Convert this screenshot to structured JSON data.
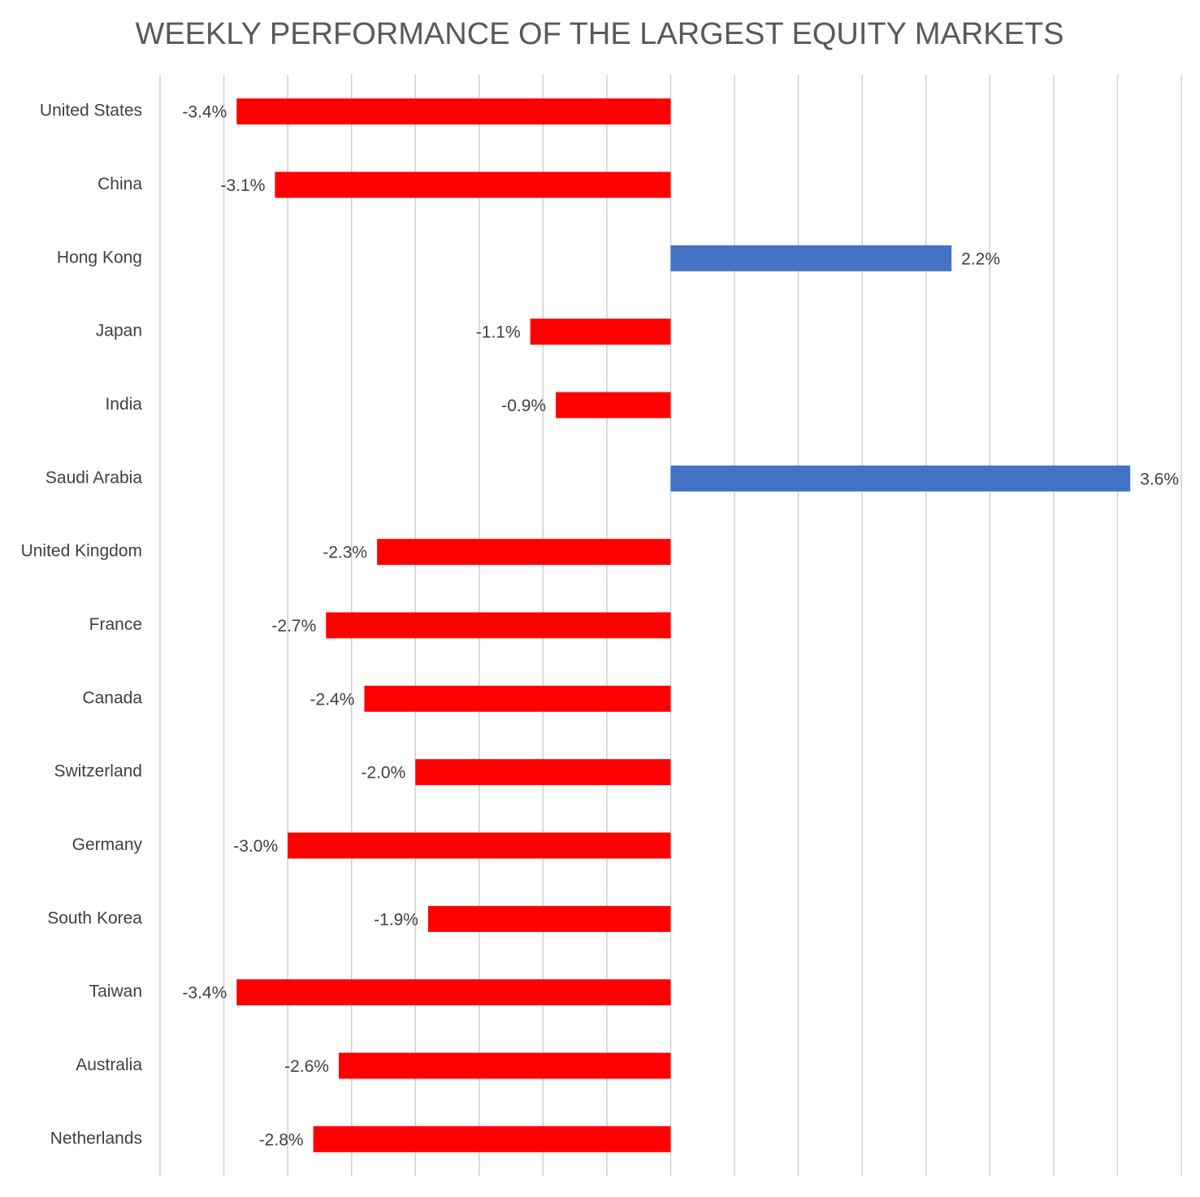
{
  "chart_data": {
    "type": "hbar",
    "title": "WEEKLY PERFORMANCE OF THE LARGEST EQUITY MARKETS",
    "categories": [
      "United States",
      "China",
      "Hong Kong",
      "Japan",
      "India",
      "Saudi Arabia",
      "United Kingdom",
      "France",
      "Canada",
      "Switzerland",
      "Germany",
      "South Korea",
      "Taiwan",
      "Australia",
      "Netherlands"
    ],
    "values": [
      -3.4,
      -3.1,
      2.2,
      -1.1,
      -0.9,
      3.6,
      -2.3,
      -2.7,
      -2.4,
      -2.0,
      -3.0,
      -1.9,
      -3.4,
      -2.6,
      -2.8
    ],
    "value_labels": [
      "-3.4%",
      "-3.1%",
      "2.2%",
      "-1.1%",
      "-0.9%",
      "3.6%",
      "-2.3%",
      "-2.7%",
      "-2.4%",
      "-2.0%",
      "-3.0%",
      "-1.9%",
      "-3.4%",
      "-2.6%",
      "-2.8%"
    ],
    "positive_color": "#4472c4",
    "negative_color": "#ff0000",
    "xlim": [
      -4,
      4
    ],
    "xticks": [
      -4,
      -3.5,
      -3,
      -2.5,
      -2,
      -1.5,
      -1,
      -0.5,
      0,
      0.5,
      1,
      1.5,
      2,
      2.5,
      3,
      3.5,
      4
    ],
    "grid": true
  }
}
